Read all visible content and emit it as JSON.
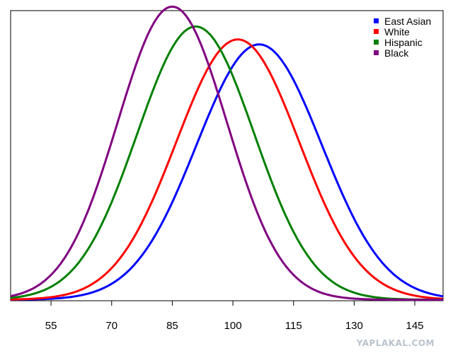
{
  "chart_data": {
    "type": "line",
    "title": "",
    "xlabel": "",
    "ylabel": "",
    "xlim": [
      45,
      152
    ],
    "ylim": [
      0,
      0.0292
    ],
    "xticks": [
      55,
      70,
      85,
      100,
      115,
      130,
      145
    ],
    "grid": false,
    "legend_position": "top-right",
    "series": [
      {
        "name": "East Asian",
        "color": "#0000ff",
        "mean": 106.5,
        "sd": 15.5,
        "peak": 0.0257
      },
      {
        "name": "White",
        "color": "#ff0000",
        "mean": 101.2,
        "sd": 15.2,
        "peak": 0.0262
      },
      {
        "name": "Hispanic",
        "color": "#008000",
        "mean": 90.8,
        "sd": 14.5,
        "peak": 0.0275
      },
      {
        "name": "Black",
        "color": "#800080",
        "mean": 85.0,
        "sd": 13.5,
        "peak": 0.0295
      }
    ]
  },
  "watermark": "YAPLAKAL.COM"
}
